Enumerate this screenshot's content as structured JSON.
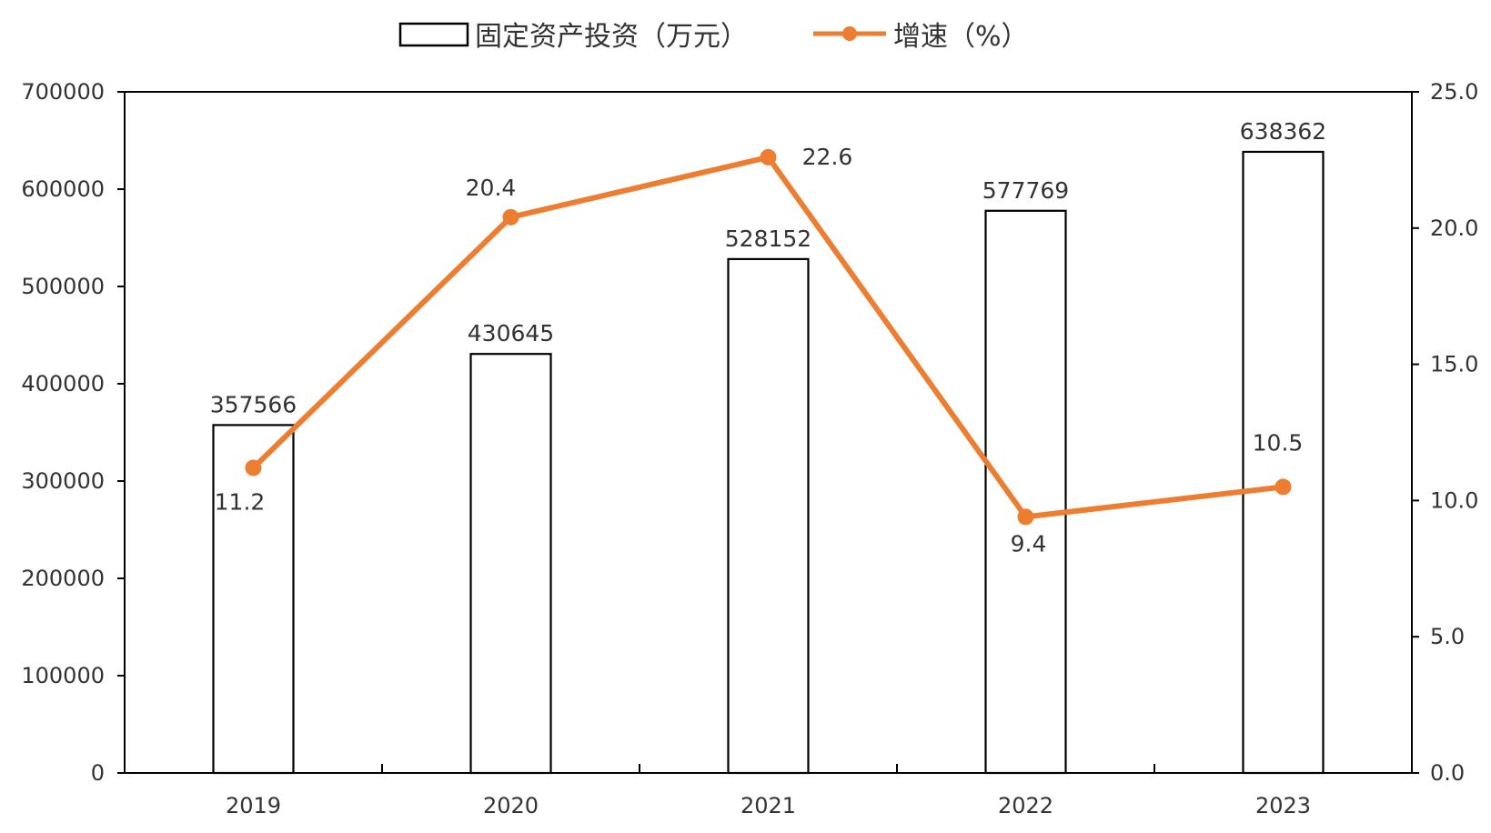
{
  "chart_data": {
    "type": "bar",
    "categories": [
      "2019",
      "2020",
      "2021",
      "2022",
      "2023"
    ],
    "series": [
      {
        "name": "固定资产投资（万元）",
        "type": "bar",
        "axis": "left",
        "values": [
          357566,
          430645,
          528152,
          577769,
          638362
        ]
      },
      {
        "name": "增速（%）",
        "type": "line",
        "axis": "right",
        "values": [
          11.2,
          20.4,
          22.6,
          9.4,
          10.5
        ]
      }
    ],
    "y_left": {
      "lim": [
        0,
        700000
      ],
      "ticks": [
        "0",
        "100000",
        "200000",
        "300000",
        "400000",
        "500000",
        "600000",
        "700000"
      ]
    },
    "y_right": {
      "lim": [
        0,
        25
      ],
      "ticks": [
        "0.0",
        "5.0",
        "10.0",
        "15.0",
        "20.0",
        "25.0"
      ]
    },
    "bar_labels": [
      "357566",
      "430645",
      "528152",
      "577769",
      "638362"
    ],
    "line_labels": [
      "11.2",
      "20.4",
      "22.6",
      "9.4",
      "10.5"
    ],
    "legend_position": "top",
    "grid": false,
    "colors": {
      "bar_fill": "#ffffff",
      "bar_stroke": "#000000",
      "line": "#ED7D31"
    }
  }
}
